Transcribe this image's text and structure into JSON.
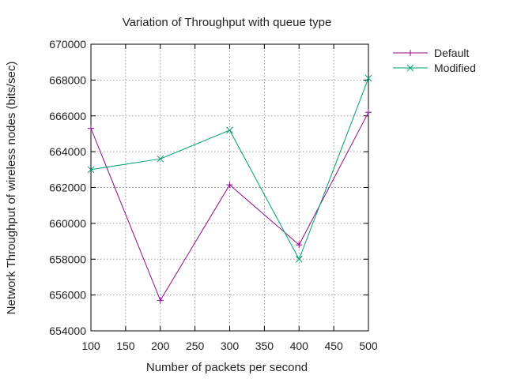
{
  "chart_data": {
    "type": "line",
    "title": "Variation of Throughput with queue type",
    "xlabel": "Number of packets per second",
    "ylabel": "Network Throughput of wireless nodes (bits/sec)",
    "xlim": [
      100,
      500
    ],
    "ylim": [
      654000,
      670000
    ],
    "x_ticks": [
      "100",
      "150",
      "200",
      "250",
      "300",
      "350",
      "400",
      "450",
      "500"
    ],
    "y_ticks": [
      "654000",
      "656000",
      "658000",
      "660000",
      "662000",
      "664000",
      "666000",
      "668000",
      "670000"
    ],
    "grid": true,
    "legend_position": "outside-top-right",
    "x": [
      100,
      200,
      300,
      400,
      500
    ],
    "series": [
      {
        "name": "Default",
        "values": [
          665300,
          655700,
          662150,
          658800,
          666200
        ],
        "color": "#8b0a8b",
        "marker": "plus"
      },
      {
        "name": "Modified",
        "values": [
          663000,
          663600,
          665200,
          658000,
          668100
        ],
        "color": "#009e73",
        "marker": "cross"
      }
    ]
  }
}
